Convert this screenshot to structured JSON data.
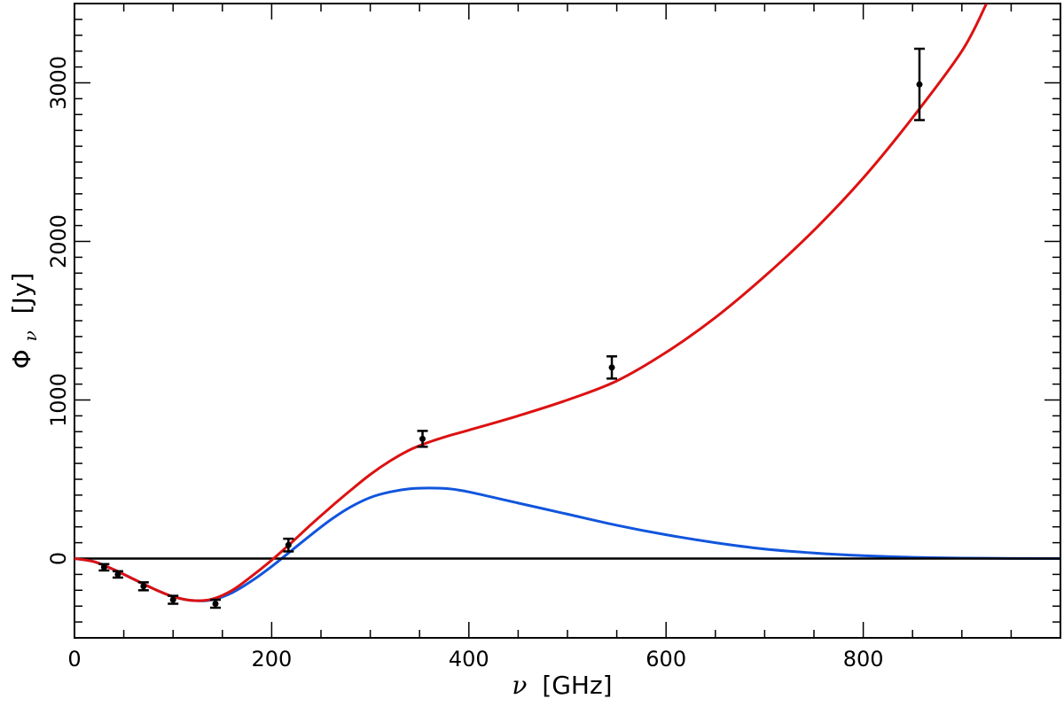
{
  "chart_data": {
    "type": "line",
    "title": "",
    "xlabel": "ν [GHz]",
    "ylabel": "Φ_ν [Jy]",
    "xlabel_parts": {
      "symbol": "ν",
      "unit": "[GHz]"
    },
    "ylabel_parts": {
      "symbol": "Φ",
      "subscript": "ν",
      "unit": "[Jy]"
    },
    "xlim": [
      0,
      1000
    ],
    "ylim": [
      -500,
      3500
    ],
    "x_ticks": [
      0,
      200,
      400,
      600,
      800
    ],
    "x_tick_labels": [
      "0",
      "200",
      "400",
      "600",
      "800"
    ],
    "y_ticks": [
      0,
      1000,
      2000,
      3000
    ],
    "y_tick_labels": [
      "0",
      "1000",
      "2000",
      "3000"
    ],
    "grid": false,
    "series": [
      {
        "kind": "model",
        "color": "#dd1111",
        "points": [
          [
            0,
            0
          ],
          [
            20,
            -20
          ],
          [
            40,
            -70
          ],
          [
            60,
            -130
          ],
          [
            80,
            -190
          ],
          [
            100,
            -240
          ],
          [
            120,
            -265
          ],
          [
            140,
            -255
          ],
          [
            160,
            -200
          ],
          [
            180,
            -110
          ],
          [
            200,
            -10
          ],
          [
            220,
            100
          ],
          [
            240,
            215
          ],
          [
            260,
            325
          ],
          [
            280,
            430
          ],
          [
            300,
            530
          ],
          [
            320,
            615
          ],
          [
            340,
            685
          ],
          [
            360,
            735
          ],
          [
            380,
            775
          ],
          [
            400,
            810
          ],
          [
            450,
            900
          ],
          [
            500,
            1000
          ],
          [
            550,
            1120
          ],
          [
            600,
            1300
          ],
          [
            650,
            1520
          ],
          [
            700,
            1780
          ],
          [
            750,
            2070
          ],
          [
            800,
            2400
          ],
          [
            850,
            2780
          ],
          [
            900,
            3200
          ],
          [
            925,
            3500
          ]
        ]
      },
      {
        "kind": "model",
        "color": "#1155dd",
        "points": [
          [
            0,
            0
          ],
          [
            20,
            -20
          ],
          [
            40,
            -70
          ],
          [
            60,
            -130
          ],
          [
            80,
            -190
          ],
          [
            100,
            -240
          ],
          [
            120,
            -265
          ],
          [
            140,
            -260
          ],
          [
            160,
            -215
          ],
          [
            180,
            -140
          ],
          [
            200,
            -50
          ],
          [
            220,
            50
          ],
          [
            240,
            150
          ],
          [
            260,
            245
          ],
          [
            280,
            325
          ],
          [
            300,
            385
          ],
          [
            320,
            420
          ],
          [
            340,
            440
          ],
          [
            360,
            445
          ],
          [
            380,
            440
          ],
          [
            400,
            420
          ],
          [
            450,
            350
          ],
          [
            500,
            280
          ],
          [
            550,
            210
          ],
          [
            600,
            150
          ],
          [
            650,
            100
          ],
          [
            700,
            60
          ],
          [
            750,
            35
          ],
          [
            800,
            18
          ],
          [
            850,
            8
          ],
          [
            900,
            3
          ],
          [
            950,
            1
          ],
          [
            1000,
            0
          ]
        ]
      },
      {
        "kind": "reference",
        "color": "#000000",
        "points": [
          [
            0,
            0
          ],
          [
            1000,
            0
          ]
        ]
      },
      {
        "kind": "measurements",
        "color": "#000000",
        "points": [
          {
            "x": 30,
            "y": -55,
            "err": 20
          },
          {
            "x": 44,
            "y": -100,
            "err": 20
          },
          {
            "x": 70,
            "y": -175,
            "err": 25
          },
          {
            "x": 100,
            "y": -260,
            "err": 25
          },
          {
            "x": 143,
            "y": -285,
            "err": 25
          },
          {
            "x": 217,
            "y": 85,
            "err": 40
          },
          {
            "x": 353,
            "y": 755,
            "err": 50
          },
          {
            "x": 545,
            "y": 1205,
            "err": 70
          },
          {
            "x": 857,
            "y": 2990,
            "err": 225
          }
        ]
      }
    ]
  }
}
